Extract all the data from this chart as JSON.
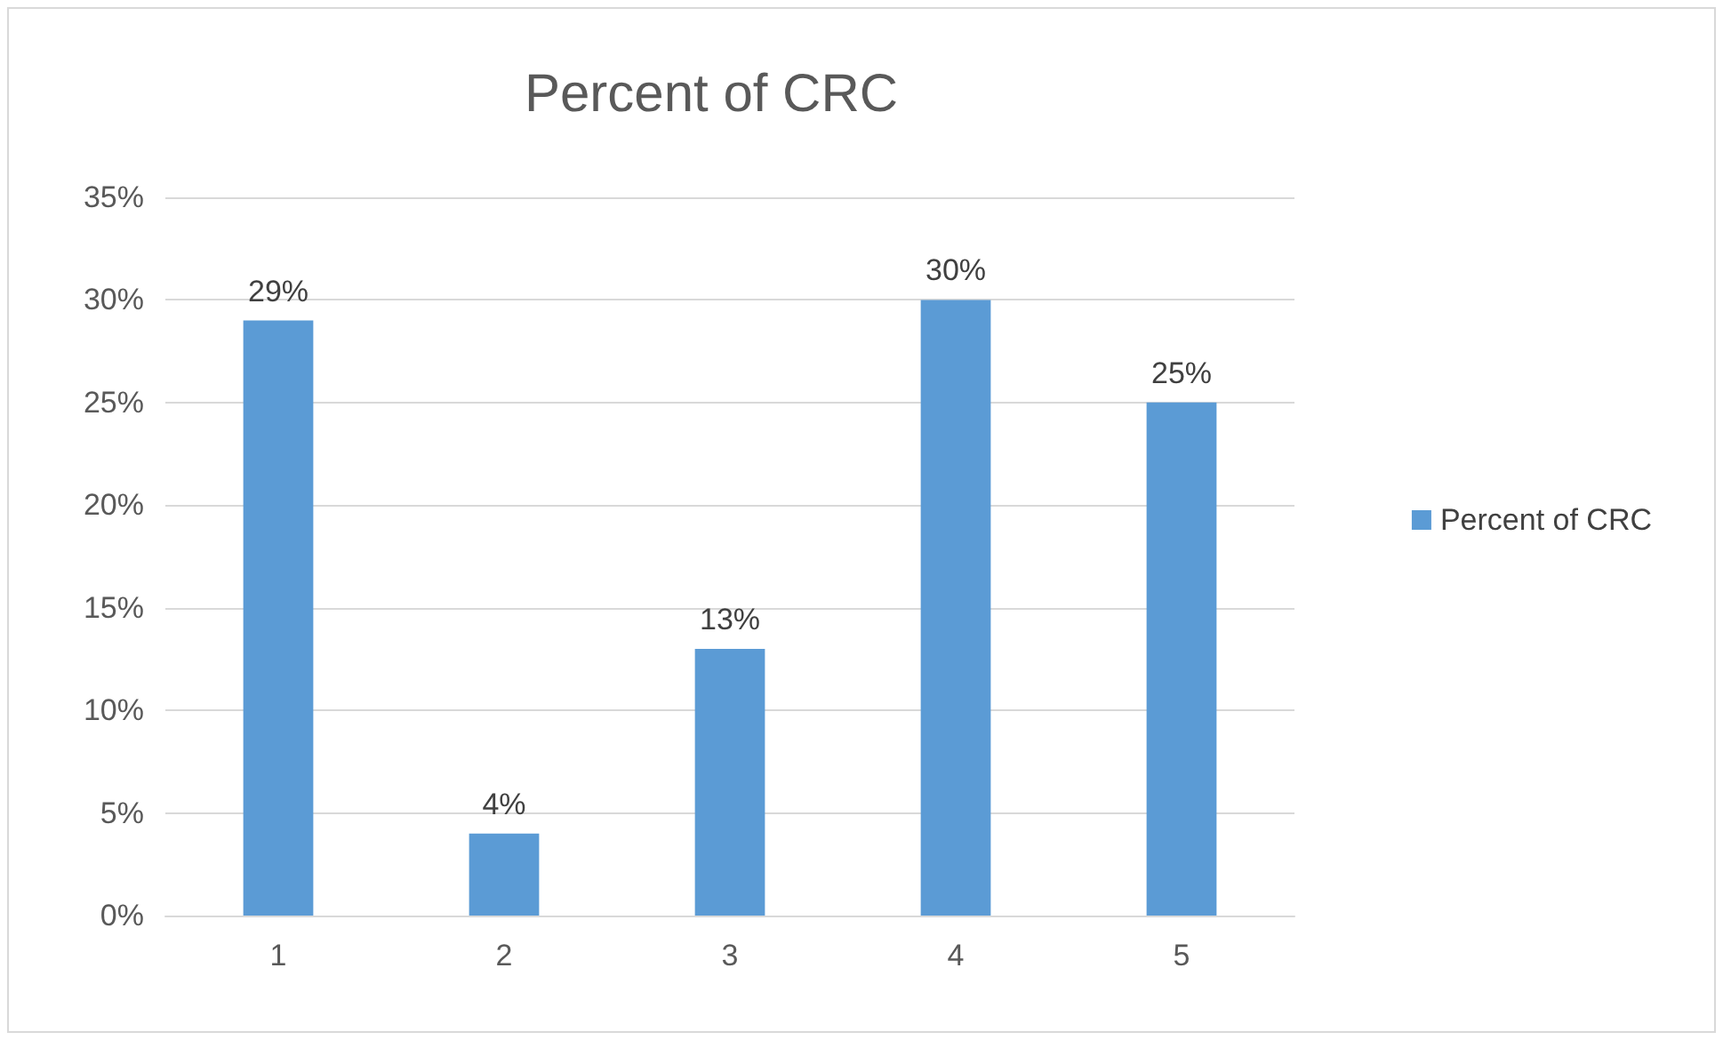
{
  "chart_data": {
    "type": "bar",
    "title": "Percent of CRC",
    "categories": [
      "1",
      "2",
      "3",
      "4",
      "5"
    ],
    "series": [
      {
        "name": "Percent of CRC",
        "color": "#5b9bd5",
        "values": [
          29,
          4,
          13,
          30,
          25
        ],
        "value_labels": [
          "29%",
          "4%",
          "13%",
          "30%",
          "25%"
        ]
      }
    ],
    "ylim": [
      0,
      35
    ],
    "yticks": [
      {
        "value": 0,
        "label": "0%"
      },
      {
        "value": 5,
        "label": "5%"
      },
      {
        "value": 10,
        "label": "10%"
      },
      {
        "value": 15,
        "label": "15%"
      },
      {
        "value": 20,
        "label": "20%"
      },
      {
        "value": 25,
        "label": "25%"
      },
      {
        "value": 30,
        "label": "30%"
      },
      {
        "value": 35,
        "label": "35%"
      }
    ],
    "grid": "y",
    "legend": "right"
  }
}
